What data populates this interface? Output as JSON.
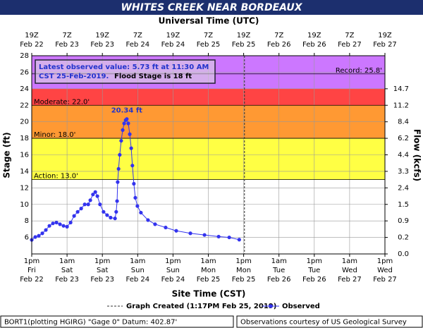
{
  "header": {
    "title": "WHITES CREEK NEAR BORDEAUX"
  },
  "chart_data": {
    "type": "line",
    "top_axis_label": "Universal Time (UTC)",
    "x_label": "Site Time (CST)",
    "y_label": "Stage (ft)",
    "y2_label": "Flow (kcfs)",
    "xlim": [
      0,
      120
    ],
    "xticks": [
      {
        "value": 0,
        "label": [
          "1pm",
          "Fri",
          "Feb 22"
        ]
      },
      {
        "value": 12,
        "label": [
          "1am",
          "Sat",
          "Feb 23"
        ]
      },
      {
        "value": 24,
        "label": [
          "1pm",
          "Sat",
          "Feb 23"
        ]
      },
      {
        "value": 36,
        "label": [
          "1am",
          "Sun",
          "Feb 24"
        ]
      },
      {
        "value": 48,
        "label": [
          "1pm",
          "Sun",
          "Feb 24"
        ]
      },
      {
        "value": 60,
        "label": [
          "1am",
          "Mon",
          "Feb 25"
        ]
      },
      {
        "value": 72,
        "label": [
          "1pm",
          "Mon",
          "Feb 25"
        ]
      },
      {
        "value": 84,
        "label": [
          "1am",
          "Tue",
          "Feb 26"
        ]
      },
      {
        "value": 96,
        "label": [
          "1pm",
          "Tue",
          "Feb 26"
        ]
      },
      {
        "value": 108,
        "label": [
          "1am",
          "Wed",
          "Feb 27"
        ]
      },
      {
        "value": 120,
        "label": [
          "1pm",
          "Wed",
          "Feb 27"
        ]
      }
    ],
    "x2ticks": [
      {
        "value": 0,
        "label": [
          "19Z",
          "Feb 22"
        ]
      },
      {
        "value": 12,
        "label": [
          "7Z",
          "Feb 23"
        ]
      },
      {
        "value": 24,
        "label": [
          "19Z",
          "Feb 23"
        ]
      },
      {
        "value": 36,
        "label": [
          "7Z",
          "Feb 24"
        ]
      },
      {
        "value": 48,
        "label": [
          "19Z",
          "Feb 24"
        ]
      },
      {
        "value": 60,
        "label": [
          "7Z",
          "Feb 25"
        ]
      },
      {
        "value": 72,
        "label": [
          "19Z",
          "Feb 25"
        ]
      },
      {
        "value": 84,
        "label": [
          "7Z",
          "Feb 26"
        ]
      },
      {
        "value": 96,
        "label": [
          "19Z",
          "Feb 26"
        ]
      },
      {
        "value": 108,
        "label": [
          "7Z",
          "Feb 27"
        ]
      },
      {
        "value": 120,
        "label": [
          "19Z",
          "Feb 27"
        ]
      }
    ],
    "ylim": [
      4,
      28
    ],
    "yticks": [
      6,
      8,
      10,
      12,
      14,
      16,
      18,
      20,
      22,
      24,
      26,
      28
    ],
    "y2ticks": [
      {
        "value": 0,
        "label": "0.0"
      },
      0.2,
      0.9,
      1.5,
      2.4,
      3.3,
      4.4,
      6.2,
      8.4,
      11.2,
      14.7
    ],
    "grid": true,
    "flood_bands": [
      {
        "from": 24,
        "color": "#cc77ff"
      },
      {
        "from": 22,
        "color": "#ff4444"
      },
      {
        "from": 18,
        "color": "#ff9933"
      },
      {
        "from": 13,
        "color": "#ffff44"
      }
    ],
    "thresholds": [
      {
        "label": "Record: 25.8'",
        "value": 25.8
      },
      {
        "label": "Moderate: 22.0'",
        "value": 22.0
      },
      {
        "label": "Minor: 18.0'",
        "value": 18.0
      },
      {
        "label": "Action: 13.0'",
        "value": 13.0
      }
    ],
    "latest_note": [
      "Latest observed value: 5.73 ft at 11:30 AM",
      "CST 25-Feb-2019.",
      "Flood Stage is 18 ft"
    ],
    "annotations": [
      {
        "text": "20.34 ft",
        "x": 32.3,
        "y": 20.34
      }
    ],
    "graph_created": {
      "label": "Graph Created (1:17PM Feb 25, 2019)",
      "x": 72.28
    },
    "x": [
      0,
      1.2,
      2.4,
      3.6,
      4.8,
      6.0,
      7.2,
      8.4,
      9.6,
      10.8,
      12.0,
      13.2,
      14.4,
      15.6,
      16.8,
      18.0,
      19.2,
      19.9,
      20.8,
      21.6,
      22.3,
      23.2,
      24.4,
      25.6,
      26.8,
      28.3,
      28.7,
      29.0,
      29.2,
      29.5,
      29.9,
      30.4,
      30.9,
      31.4,
      31.9,
      32.3,
      32.8,
      33.3,
      33.8,
      34.2,
      34.7,
      35.2,
      35.9,
      37.1,
      39.5,
      41.9,
      45.5,
      49.1,
      53.9,
      58.7,
      63.5,
      67.1,
      70.5
    ],
    "series": [
      {
        "name": "Observed",
        "color": "#3333ee",
        "values": [
          5.7,
          6.05,
          6.2,
          6.5,
          6.9,
          7.4,
          7.7,
          7.8,
          7.6,
          7.4,
          7.3,
          7.8,
          8.6,
          9.1,
          9.5,
          10.0,
          10.0,
          10.5,
          11.2,
          11.5,
          11.0,
          10.0,
          9.1,
          8.7,
          8.4,
          8.3,
          9.1,
          10.4,
          12.7,
          14.3,
          16.0,
          17.7,
          19.0,
          19.8,
          20.2,
          20.34,
          19.8,
          18.5,
          16.8,
          14.7,
          12.5,
          10.8,
          9.8,
          9.0,
          8.1,
          7.6,
          7.2,
          6.8,
          6.5,
          6.3,
          6.1,
          6.0,
          5.73
        ]
      }
    ]
  },
  "footer": {
    "left": "BORT1(plotting HGIRG) \"Gage 0\" Datum: 402.87'",
    "right": "Observations courtesy of US Geological Survey"
  }
}
